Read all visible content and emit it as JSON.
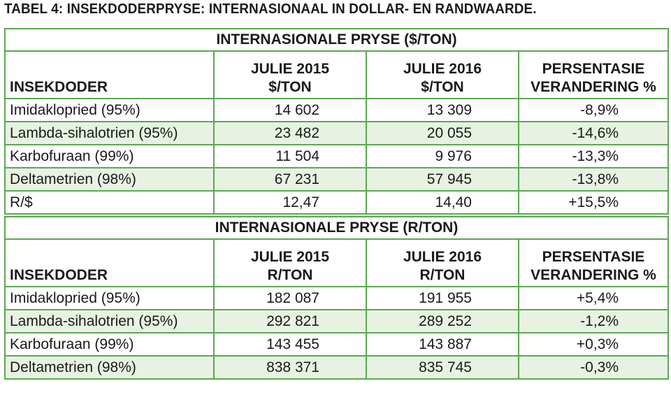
{
  "title": "TABEL 4: INSEKDODERPRYSE: INTERNASIONAAL IN DOLLAR- EN RANDWAARDE.",
  "colors": {
    "border": "#5aa84f",
    "row_shade": "#e7f2e2"
  },
  "section1": {
    "heading": "INTERNASIONALE PRYSE ($/TON)",
    "headers": {
      "col1": "INSEKDODER",
      "col2_line1": "JULIE 2015",
      "col2_line2": "$/TON",
      "col3_line1": "JULIE 2016",
      "col3_line2": "$/TON",
      "col4_line1": "PERSENTASIE",
      "col4_line2": "VERANDERING %"
    },
    "rows": [
      {
        "name": "Imidaklopried (95%)",
        "v2015": "14 602",
        "v2016": "13 309",
        "change": "-8,9%"
      },
      {
        "name": "Lambda-sihalotrien (95%)",
        "v2015": "23 482",
        "v2016": "20 055",
        "change": "-14,6%"
      },
      {
        "name": "Karbofuraan (99%)",
        "v2015": "11 504",
        "v2016": "9 976",
        "change": "-13,3%"
      },
      {
        "name": "Deltametrien (98%)",
        "v2015": "67 231",
        "v2016": "57 945",
        "change": "-13,8%"
      },
      {
        "name": "R/$",
        "v2015": "12,47",
        "v2016": "14,40",
        "change": "+15,5%"
      }
    ]
  },
  "section2": {
    "heading": "INTERNASIONALE PRYSE (R/TON)",
    "headers": {
      "col1": "INSEKDODER",
      "col2_line1": "JULIE 2015",
      "col2_line2": "R/TON",
      "col3_line1": "JULIE 2016",
      "col3_line2": "R/TON",
      "col4_line1": "PERSENTASIE",
      "col4_line2": "VERANDERING %"
    },
    "rows": [
      {
        "name": "Imidaklopried (95%)",
        "v2015": "182 087",
        "v2016": "191 955",
        "change": "+5,4%"
      },
      {
        "name": "Lambda-sihalotrien (95%)",
        "v2015": "292 821",
        "v2016": "289 252",
        "change": "-1,2%"
      },
      {
        "name": "Karbofuraan (99%)",
        "v2015": "143 455",
        "v2016": "143 887",
        "change": "+0,3%"
      },
      {
        "name": "Deltametrien (98%)",
        "v2015": "838 371",
        "v2016": "835 745",
        "change": "-0,3%"
      }
    ]
  }
}
